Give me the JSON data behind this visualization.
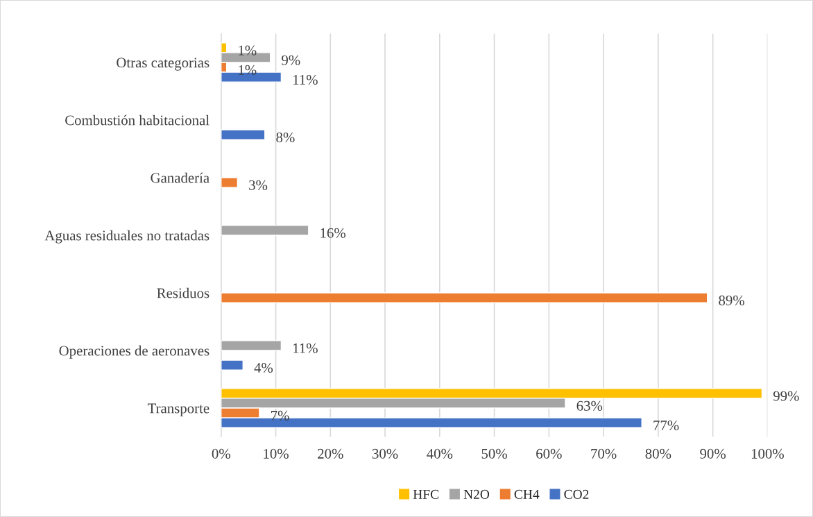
{
  "chart_data": {
    "type": "bar",
    "orientation": "horizontal",
    "categories": [
      "Otras categorias",
      "Combustión habitacional",
      "Ganadería",
      "Aguas residuales no tratadas",
      "Residuos",
      "Operaciones de aeronaves",
      "Transporte"
    ],
    "series": [
      {
        "name": "HFC",
        "color": "#ffc000",
        "values": [
          1,
          null,
          null,
          null,
          null,
          null,
          99
        ],
        "value_labels": [
          "1%",
          null,
          null,
          null,
          null,
          null,
          "99%"
        ]
      },
      {
        "name": "N2O",
        "color": "#a5a5a5",
        "values": [
          9,
          null,
          null,
          16,
          null,
          11,
          63
        ],
        "value_labels": [
          "9%",
          null,
          null,
          "16%",
          null,
          "11%",
          "63%"
        ]
      },
      {
        "name": "CH4",
        "color": "#ed7d31",
        "values": [
          1,
          null,
          3,
          null,
          89,
          null,
          7
        ],
        "value_labels": [
          "1%",
          null,
          "3%",
          null,
          "89%",
          null,
          "7%"
        ]
      },
      {
        "name": "CO2",
        "color": "#4472c4",
        "values": [
          11,
          8,
          null,
          null,
          null,
          4,
          77
        ],
        "value_labels": [
          "11%",
          "8%",
          null,
          null,
          null,
          "4%",
          "77%"
        ]
      }
    ],
    "xlim": [
      0,
      100
    ],
    "xticks": [
      {
        "value": 0,
        "label": "0%"
      },
      {
        "value": 10,
        "label": "10%"
      },
      {
        "value": 20,
        "label": "20%"
      },
      {
        "value": 30,
        "label": "30%"
      },
      {
        "value": 40,
        "label": "40%"
      },
      {
        "value": 50,
        "label": "50%"
      },
      {
        "value": 60,
        "label": "60%"
      },
      {
        "value": 70,
        "label": "70%"
      },
      {
        "value": 80,
        "label": "80%"
      },
      {
        "value": 90,
        "label": "90%"
      },
      {
        "value": 100,
        "label": "100%"
      }
    ],
    "grid": "x",
    "legend": "bottom"
  }
}
